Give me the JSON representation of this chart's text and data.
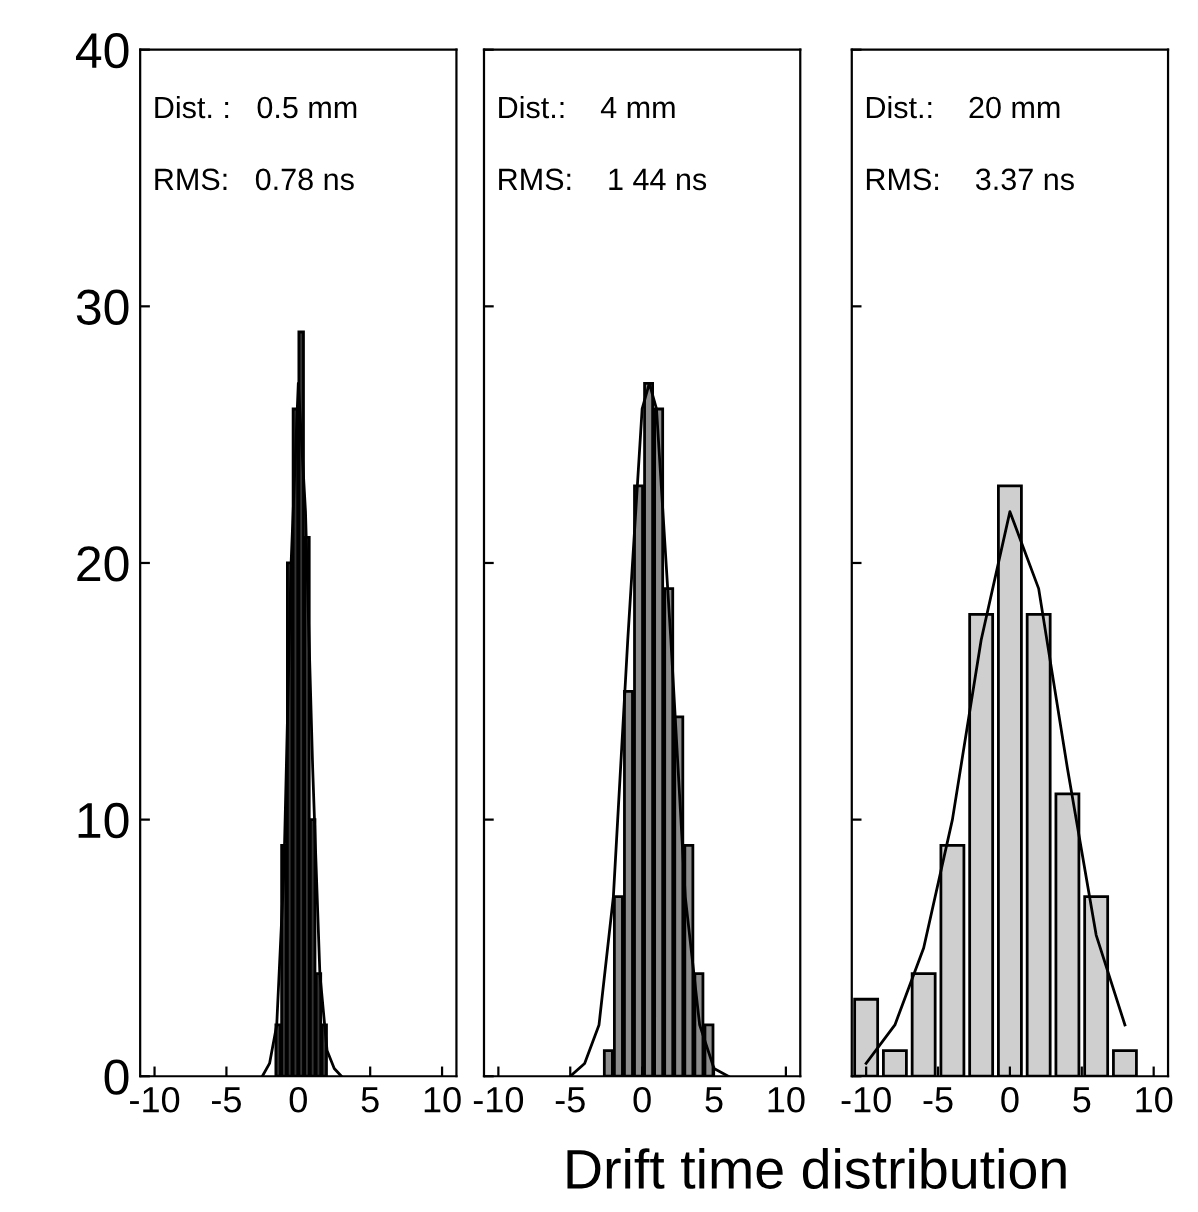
{
  "chart_data": [
    {
      "type": "histogram",
      "bins": [
        -1.6,
        -1.2,
        -0.8,
        -0.4,
        0,
        0.4,
        0.8,
        1.2,
        1.6,
        2.0
      ],
      "values": [
        2,
        9,
        20,
        26,
        29,
        21,
        10,
        4,
        2
      ],
      "color": "#333333",
      "series": [
        {
          "type": "line",
          "color": "#000000",
          "x": [
            -2.5,
            -2,
            -1.5,
            -1,
            -0.5,
            0,
            0.5,
            1,
            1.5,
            2,
            2.5,
            3
          ],
          "values": [
            0,
            0.5,
            2,
            8,
            20,
            27,
            22,
            12,
            4,
            1,
            0.3,
            0
          ]
        }
      ],
      "xlim": [
        -11,
        11
      ],
      "xticks": [
        -10,
        -5,
        0,
        5,
        10
      ],
      "ylim": [
        0,
        40
      ],
      "yticks": [
        0,
        10,
        20,
        30,
        40
      ],
      "annotations": [
        "Dist. :   0.5 mm",
        "RMS:   0.78 ns"
      ]
    },
    {
      "type": "histogram",
      "bins": [
        -2.7,
        -2.0,
        -1.3,
        -0.6,
        0.1,
        0.8,
        1.5,
        2.2,
        2.9,
        3.6,
        4.3,
        5.0
      ],
      "values": [
        1,
        7,
        15,
        23,
        27,
        26,
        19,
        14,
        9,
        4,
        2
      ],
      "color": "#8c8c8c",
      "series": [
        {
          "type": "line",
          "color": "#000000",
          "x": [
            -5,
            -4,
            -3,
            -2,
            -1,
            0,
            0.5,
            1,
            2,
            3,
            4,
            5,
            6
          ],
          "values": [
            0,
            0.5,
            2,
            7,
            17,
            26,
            27,
            26,
            17,
            7,
            2,
            0.3,
            0
          ]
        }
      ],
      "xlim": [
        -11,
        11
      ],
      "xticks": [
        -10,
        -5,
        0,
        5,
        10
      ],
      "ylim": [
        0,
        40
      ],
      "yticks": [
        0,
        10,
        20,
        30,
        40
      ],
      "tick_labels": "x",
      "xlabel": "Drift time distribution",
      "annotations": [
        "Dist.:    4 mm",
        "RMS:    1 44 ns"
      ]
    },
    {
      "type": "histogram",
      "bins": [
        -11,
        -9,
        -7,
        -5,
        -3,
        -1,
        1,
        3,
        5,
        7,
        9
      ],
      "values": [
        3,
        1,
        4,
        9,
        18,
        23,
        18,
        11,
        7,
        1
      ],
      "color": "#cfcfcf",
      "series": [
        {
          "type": "line",
          "color": "#000000",
          "x": [
            -10,
            -8,
            -6,
            -4,
            -2,
            0,
            2,
            4,
            6,
            8
          ],
          "values": [
            0.5,
            2,
            5,
            10,
            17,
            22,
            19,
            12,
            5.5,
            2
          ]
        }
      ],
      "xlim": [
        -11,
        11
      ],
      "xticks": [
        -10,
        -5,
        0,
        5,
        10
      ],
      "ylim": [
        0,
        40
      ],
      "yticks": [
        0,
        10,
        20,
        30,
        40
      ],
      "tick_labels": "x",
      "annotations": [
        "Dist.:    20 mm",
        "RMS:    3.37 ns"
      ]
    }
  ]
}
